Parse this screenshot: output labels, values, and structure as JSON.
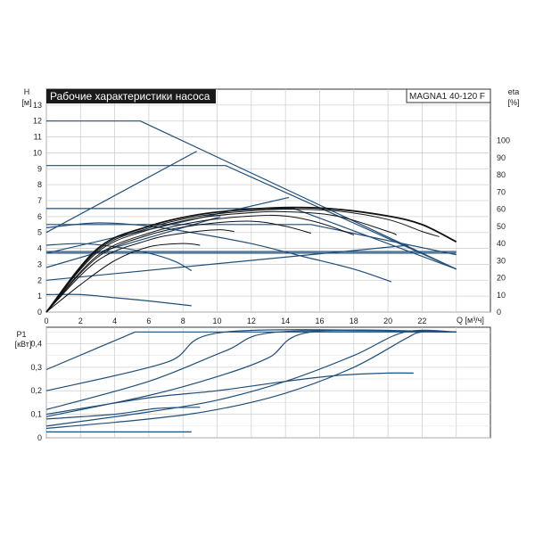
{
  "chart_data": [
    {
      "type": "line",
      "title": "Рабочие характеристики насоса",
      "model": "MAGNA1 40-120 F",
      "y_unit_label": [
        "H",
        "[м]"
      ],
      "y2_unit_label": [
        "eta",
        "[%]"
      ],
      "x_unit_label": "Q [м³/ч]",
      "xlim": [
        0,
        26
      ],
      "ylim": [
        0,
        14
      ],
      "y2lim": [
        0,
        130
      ],
      "x_ticks": [
        0,
        2,
        4,
        6,
        8,
        10,
        12,
        14,
        16,
        18,
        20,
        22
      ],
      "y_ticks": [
        0,
        1,
        2,
        3,
        4,
        5,
        6,
        7,
        8,
        9,
        10,
        11,
        12,
        13
      ],
      "y2_ticks": [
        0,
        10,
        20,
        30,
        40,
        50,
        60,
        70,
        80,
        90,
        100
      ],
      "grid": true,
      "head_curves": [
        {
          "points": [
            [
              0,
              12
            ],
            [
              5.5,
              12
            ],
            [
              24,
              2.7
            ]
          ]
        },
        {
          "points": [
            [
              0,
              9.2
            ],
            [
              10.5,
              9.2
            ],
            [
              24,
              2.7
            ]
          ]
        },
        {
          "points": [
            [
              0,
              6.5
            ],
            [
              14.5,
              6.5
            ],
            [
              24,
              2.7
            ]
          ]
        },
        {
          "points": [
            [
              0,
              5.5
            ],
            [
              15.5,
              5.5
            ],
            [
              24,
              3.6
            ]
          ]
        },
        {
          "points": [
            [
              0,
              3.8
            ],
            [
              24,
              3.8
            ]
          ]
        },
        {
          "points": [
            [
              0,
              3.7
            ],
            [
              24,
              3.7
            ]
          ]
        },
        {
          "points": [
            [
              0,
              5
            ],
            [
              8.8,
              10.1
            ]
          ]
        },
        {
          "points": [
            [
              0,
              3.7
            ],
            [
              14.2,
              7.2
            ]
          ]
        },
        {
          "points": [
            [
              0,
              2.8
            ],
            [
              10.2,
              6.0
            ]
          ]
        },
        {
          "points": [
            [
              0,
              2.0
            ],
            [
              21.2,
              4.2
            ]
          ]
        },
        {
          "points": [
            [
              0,
              5.3
            ],
            [
              3,
              5.6
            ],
            [
              6,
              5.4
            ],
            [
              9,
              4.9
            ],
            [
              12,
              4.3
            ],
            [
              15,
              3.5
            ],
            [
              18,
              2.7
            ],
            [
              20.2,
              1.9
            ]
          ]
        },
        {
          "points": [
            [
              0,
              4.2
            ],
            [
              2,
              4.3
            ],
            [
              4,
              4.1
            ],
            [
              6,
              3.7
            ],
            [
              7.5,
              3.2
            ],
            [
              8.5,
              2.6
            ]
          ]
        },
        {
          "points": [
            [
              0,
              1.1
            ],
            [
              2,
              1.1
            ],
            [
              4,
              0.9
            ],
            [
              6,
              0.7
            ],
            [
              8.5,
              0.4
            ]
          ]
        }
      ],
      "efficiency_curves": [
        {
          "points": [
            [
              0,
              0
            ],
            [
              3,
              37
            ],
            [
              6,
              50
            ],
            [
              9,
              57
            ],
            [
              12,
              60
            ],
            [
              14.5,
              61
            ],
            [
              17,
              60
            ],
            [
              20,
              56
            ],
            [
              22,
              51
            ],
            [
              24,
              41
            ]
          ]
        },
        {
          "points": [
            [
              0,
              0
            ],
            [
              3,
              36
            ],
            [
              6,
              49
            ],
            [
              9,
              56
            ],
            [
              12,
              59
            ],
            [
              14,
              60
            ],
            [
              17,
              59
            ],
            [
              20,
              54
            ],
            [
              22,
              47
            ],
            [
              23,
              44
            ]
          ]
        },
        {
          "points": [
            [
              0,
              0
            ],
            [
              3,
              35
            ],
            [
              6,
              48
            ],
            [
              9,
              55
            ],
            [
              12,
              58
            ],
            [
              14,
              58.5
            ],
            [
              17,
              56
            ],
            [
              20,
              47
            ],
            [
              20.5,
              45
            ]
          ]
        },
        {
          "points": [
            [
              0,
              0
            ],
            [
              3,
              33
            ],
            [
              6,
              46
            ],
            [
              9,
              53
            ],
            [
              12,
              56
            ],
            [
              14,
              56
            ],
            [
              16,
              52
            ],
            [
              18,
              45
            ]
          ]
        },
        {
          "points": [
            [
              0,
              0
            ],
            [
              3,
              32
            ],
            [
              6,
              45
            ],
            [
              9,
              51
            ],
            [
              12,
              53
            ],
            [
              14,
              50
            ],
            [
              15.5,
              46
            ]
          ]
        },
        {
          "points": [
            [
              0,
              0
            ],
            [
              3,
              30
            ],
            [
              6,
              42
            ],
            [
              8,
              46
            ],
            [
              10,
              48
            ],
            [
              11,
              47
            ]
          ]
        },
        {
          "points": [
            [
              0,
              0
            ],
            [
              2,
              16
            ],
            [
              4,
              30
            ],
            [
              6,
              38
            ],
            [
              8,
              40
            ],
            [
              9,
              39
            ]
          ]
        }
      ]
    },
    {
      "type": "line",
      "y_unit_label": [
        "P1",
        "[кВт]"
      ],
      "xlim": [
        0,
        26
      ],
      "ylim": [
        0,
        0.47
      ],
      "y_ticks": [
        0,
        0.1,
        0.2,
        0.3,
        0.4
      ],
      "y_tick_labels": [
        "0",
        "0,1",
        "0,2",
        "0,3",
        "0,4"
      ],
      "grid": true,
      "power_curves": [
        {
          "points": [
            [
              0,
              0.29
            ],
            [
              5.2,
              0.45
            ],
            [
              24,
              0.45
            ]
          ]
        },
        {
          "points": [
            [
              0,
              0.2
            ],
            [
              7,
              0.32
            ],
            [
              10.5,
              0.45
            ],
            [
              24,
              0.45
            ]
          ]
        },
        {
          "points": [
            [
              0,
              0.12
            ],
            [
              6,
              0.24
            ],
            [
              10.5,
              0.37
            ],
            [
              13.6,
              0.45
            ],
            [
              24,
              0.45
            ]
          ]
        },
        {
          "points": [
            [
              0,
              0.09
            ],
            [
              6,
              0.18
            ],
            [
              10,
              0.26
            ],
            [
              13,
              0.34
            ],
            [
              15.5,
              0.45
            ],
            [
              24,
              0.45
            ]
          ]
        },
        {
          "points": [
            [
              0,
              0.05
            ],
            [
              6,
              0.11
            ],
            [
              10,
              0.16
            ],
            [
              14,
              0.24
            ],
            [
              18,
              0.35
            ],
            [
              21,
              0.45
            ],
            [
              24,
              0.45
            ]
          ]
        },
        {
          "points": [
            [
              0,
              0.04
            ],
            [
              6,
              0.08
            ],
            [
              10,
              0.12
            ],
            [
              14,
              0.19
            ],
            [
              18,
              0.3
            ],
            [
              21,
              0.42
            ],
            [
              22,
              0.45
            ],
            [
              24,
              0.45
            ]
          ]
        },
        {
          "points": [
            [
              0,
              0.1
            ],
            [
              6,
              0.17
            ],
            [
              10,
              0.2
            ],
            [
              14,
              0.24
            ],
            [
              17,
              0.265
            ],
            [
              20,
              0.275
            ],
            [
              21.5,
              0.275
            ]
          ]
        },
        {
          "points": [
            [
              0,
              0.08
            ],
            [
              4,
              0.1
            ],
            [
              6.5,
              0.125
            ],
            [
              9,
              0.13
            ]
          ]
        },
        {
          "points": [
            [
              0,
              0.025
            ],
            [
              8.5,
              0.025
            ]
          ]
        }
      ]
    }
  ],
  "colors": {
    "accent": "#1f4e79",
    "efficiency": "#111111",
    "grid": "#d0d0d0",
    "title_bg": "#1a1a1a"
  }
}
